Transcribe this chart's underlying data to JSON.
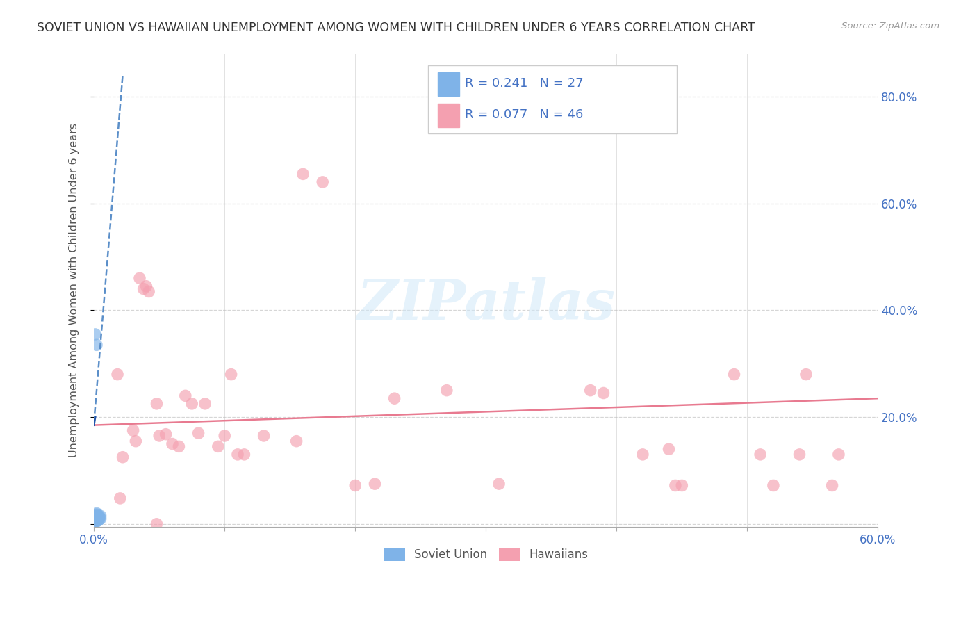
{
  "title": "SOVIET UNION VS HAWAIIAN UNEMPLOYMENT AMONG WOMEN WITH CHILDREN UNDER 6 YEARS CORRELATION CHART",
  "source": "Source: ZipAtlas.com",
  "ylabel": "Unemployment Among Women with Children Under 6 years",
  "xlim": [
    0.0,
    0.6
  ],
  "ylim": [
    -0.005,
    0.88
  ],
  "yticks": [
    0.0,
    0.2,
    0.4,
    0.6,
    0.8
  ],
  "ytick_labels": [
    "",
    "20.0%",
    "40.0%",
    "60.0%",
    "80.0%"
  ],
  "watermark": "ZIPatlas",
  "soviet_R": 0.241,
  "soviet_N": 27,
  "hawaiian_R": 0.077,
  "hawaiian_N": 46,
  "soviet_color": "#7fb3e8",
  "hawaiian_color": "#f4a0b0",
  "soviet_line_color": "#5b8fc9",
  "hawaiian_line_color": "#e87a90",
  "soviet_x": [
    0.001,
    0.001,
    0.001,
    0.001,
    0.001,
    0.0015,
    0.0015,
    0.0015,
    0.002,
    0.002,
    0.002,
    0.002,
    0.002,
    0.002,
    0.002,
    0.0025,
    0.003,
    0.003,
    0.003,
    0.003,
    0.004,
    0.004,
    0.004,
    0.005,
    0.005,
    0.001,
    0.002
  ],
  "soviet_y": [
    0.005,
    0.008,
    0.01,
    0.012,
    0.015,
    0.006,
    0.01,
    0.013,
    0.005,
    0.007,
    0.01,
    0.012,
    0.015,
    0.018,
    0.02,
    0.008,
    0.006,
    0.01,
    0.012,
    0.015,
    0.008,
    0.012,
    0.015,
    0.01,
    0.015,
    0.355,
    0.335
  ],
  "hawaiian_x": [
    0.018,
    0.022,
    0.03,
    0.032,
    0.035,
    0.038,
    0.04,
    0.042,
    0.048,
    0.05,
    0.055,
    0.06,
    0.065,
    0.07,
    0.075,
    0.08,
    0.085,
    0.095,
    0.1,
    0.105,
    0.11,
    0.115,
    0.13,
    0.155,
    0.16,
    0.175,
    0.2,
    0.215,
    0.23,
    0.27,
    0.31,
    0.38,
    0.39,
    0.42,
    0.44,
    0.445,
    0.45,
    0.49,
    0.51,
    0.52,
    0.54,
    0.545,
    0.565,
    0.57,
    0.02,
    0.048
  ],
  "hawaiian_y": [
    0.28,
    0.125,
    0.175,
    0.155,
    0.46,
    0.44,
    0.445,
    0.435,
    0.225,
    0.165,
    0.168,
    0.15,
    0.145,
    0.24,
    0.225,
    0.17,
    0.225,
    0.145,
    0.165,
    0.28,
    0.13,
    0.13,
    0.165,
    0.155,
    0.655,
    0.64,
    0.072,
    0.075,
    0.235,
    0.25,
    0.075,
    0.25,
    0.245,
    0.13,
    0.14,
    0.072,
    0.072,
    0.28,
    0.13,
    0.072,
    0.13,
    0.28,
    0.072,
    0.13,
    0.048,
    0.0
  ],
  "soviet_line_x": [
    0.0,
    0.022
  ],
  "soviet_line_y": [
    0.19,
    0.84
  ],
  "hawaiian_line_x": [
    0.0,
    0.6
  ],
  "hawaiian_line_y": [
    0.185,
    0.235
  ]
}
